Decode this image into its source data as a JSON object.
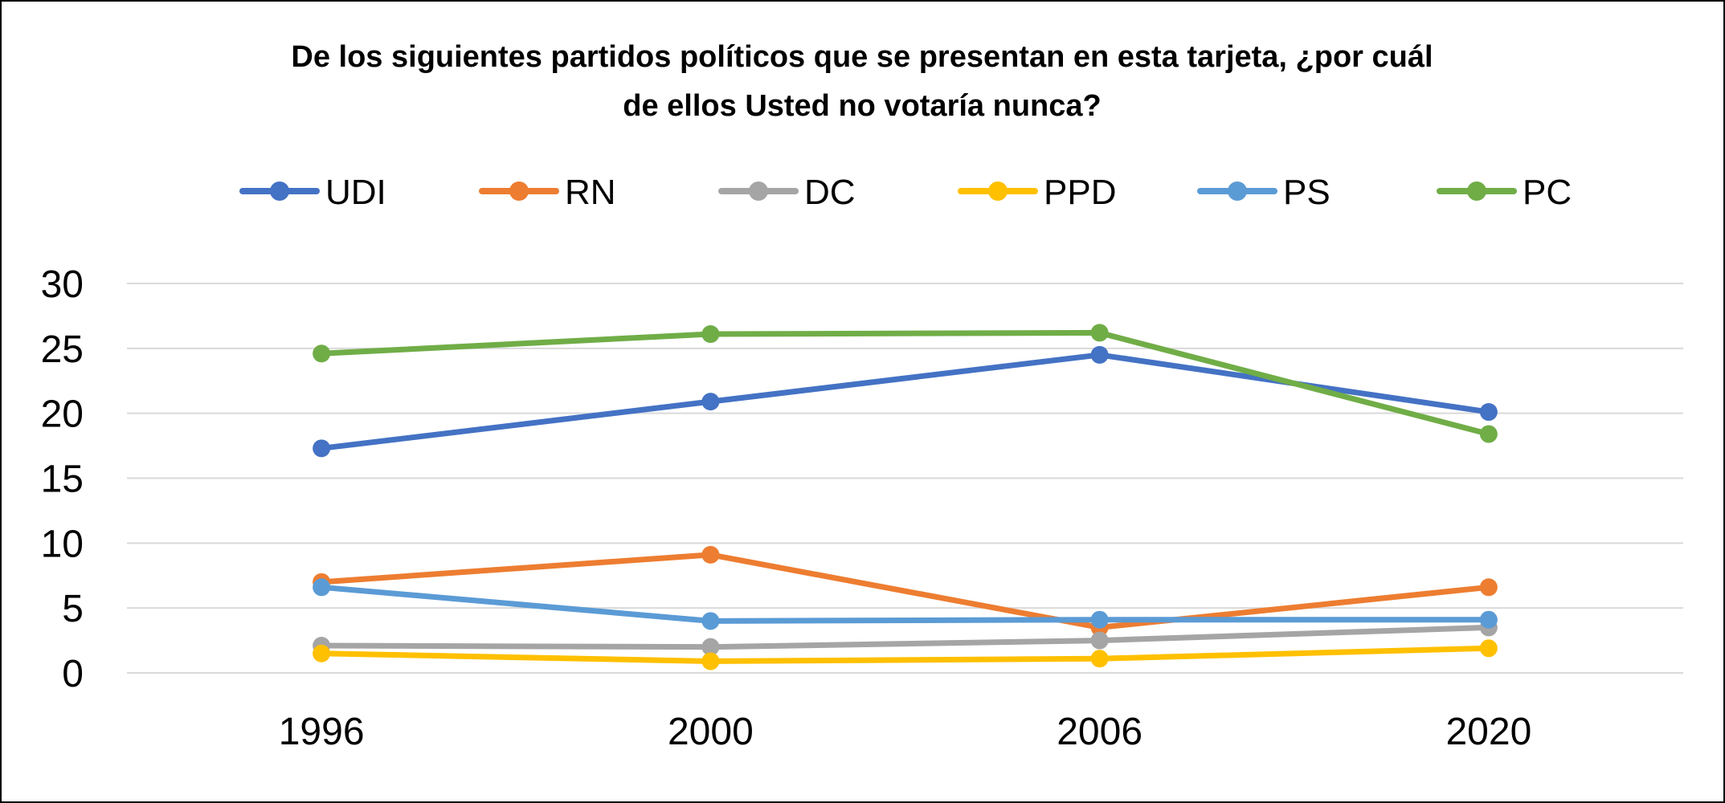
{
  "chart_data": {
    "type": "line",
    "title_lines": [
      "De los siguientes partidos políticos que se presentan en esta tarjeta, ¿por cuál",
      "de ellos Usted no votaría nunca?"
    ],
    "categories": [
      "1996",
      "2000",
      "2006",
      "2020"
    ],
    "ylim": [
      0,
      30
    ],
    "yticks": [
      "0",
      "5",
      "10",
      "15",
      "20",
      "25",
      "30"
    ],
    "grid": true,
    "legend_position": "top",
    "series": [
      {
        "name": "UDI",
        "color": "#4472C4",
        "values": [
          17.3,
          20.9,
          24.5,
          20.1
        ]
      },
      {
        "name": "RN",
        "color": "#ED7D31",
        "values": [
          7.0,
          9.1,
          3.5,
          6.6
        ]
      },
      {
        "name": "DC",
        "color": "#A5A5A5",
        "values": [
          2.1,
          2.0,
          2.5,
          3.5
        ]
      },
      {
        "name": "PPD",
        "color": "#FFC000",
        "values": [
          1.5,
          0.9,
          1.1,
          1.9
        ]
      },
      {
        "name": "PS",
        "color": "#5B9BD5",
        "values": [
          6.6,
          4.0,
          4.1,
          4.1
        ]
      },
      {
        "name": "PC",
        "color": "#70AD47",
        "values": [
          24.6,
          26.1,
          26.2,
          18.4
        ]
      }
    ]
  }
}
